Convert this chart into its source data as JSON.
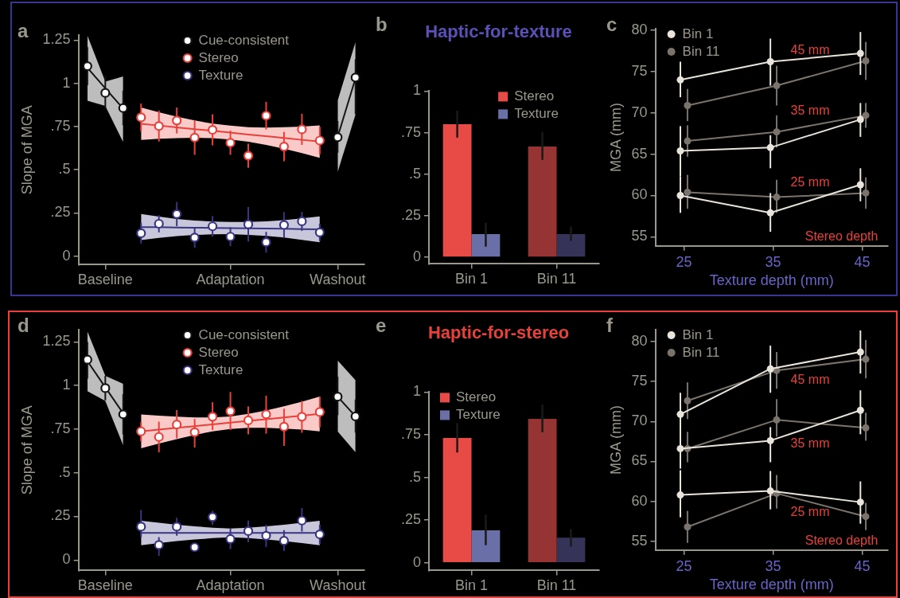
{
  "chart_data": [
    {
      "type": "scatter",
      "ylabel": "Slope of MGA",
      "annotations": [
        "a"
      ],
      "legend": "top",
      "marker": "circle",
      "categories": [
        null,
        "Baseline",
        null,
        null,
        null,
        null,
        null,
        null,
        "Adaptation",
        null,
        null,
        null,
        null,
        null,
        "Washout",
        null
      ],
      "ylim": [
        -0.05,
        1.28
      ],
      "yticks": [
        0,
        {
          "value": 0.25,
          "label": ".25"
        },
        {
          "value": 0.5,
          "label": ".5"
        },
        {
          "value": 0.75,
          "label": ".75"
        },
        1,
        1.25
      ],
      "series": [
        {
          "type": "line",
          "marker": "none",
          "color": "#141414",
          "values": [
            1.09,
            0.972,
            0.854,
            null,
            null,
            null,
            null,
            null,
            null,
            null,
            null,
            null,
            null,
            null,
            null,
            null
          ],
          "lower": [
            0.9,
            0.87,
            0.66,
            null,
            null,
            null,
            null,
            null,
            null,
            null,
            null,
            null,
            null,
            null,
            null,
            null
          ],
          "upper": [
            1.277,
            1.01,
            1.04,
            null,
            null,
            null,
            null,
            null,
            null,
            null,
            null,
            null,
            null,
            null,
            null,
            null
          ]
        },
        {
          "type": "line",
          "marker": "none",
          "color": "#141414",
          "values": [
            null,
            null,
            null,
            null,
            null,
            null,
            null,
            null,
            null,
            null,
            null,
            null,
            null,
            null,
            0.69,
            1.03
          ],
          "lower": [
            null,
            null,
            null,
            null,
            null,
            null,
            null,
            null,
            null,
            null,
            null,
            null,
            null,
            null,
            0.487,
            0.82
          ],
          "upper": [
            null,
            null,
            null,
            null,
            null,
            null,
            null,
            null,
            null,
            null,
            null,
            null,
            null,
            null,
            0.9,
            1.24
          ]
        },
        {
          "type": "line",
          "marker": "none",
          "color": "#e8403a",
          "values": [
            null,
            null,
            null,
            0.766,
            0.756,
            0.745,
            0.735,
            0.725,
            0.715,
            0.704,
            0.694,
            0.684,
            0.673,
            0.663,
            null,
            null
          ],
          "lower": [
            null,
            null,
            null,
            0.672,
            0.679,
            0.683,
            0.685,
            0.683,
            0.675,
            0.662,
            0.644,
            0.622,
            0.596,
            0.569,
            null,
            null
          ],
          "upper": [
            null,
            null,
            null,
            0.86,
            0.833,
            0.807,
            0.785,
            0.767,
            0.755,
            0.746,
            0.744,
            0.746,
            0.75,
            0.757,
            null,
            null
          ]
        },
        {
          "type": "line",
          "marker": "none",
          "color": "#3a3580",
          "values": [
            null,
            null,
            null,
            0.168,
            0.167,
            0.165,
            0.164,
            0.163,
            0.162,
            0.16,
            0.159,
            0.158,
            0.156,
            0.155,
            null,
            null
          ],
          "lower": [
            null,
            null,
            null,
            0.093,
            0.105,
            0.115,
            0.122,
            0.126,
            0.127,
            0.123,
            0.117,
            0.108,
            0.094,
            0.08,
            null,
            null
          ],
          "upper": [
            null,
            null,
            null,
            0.243,
            0.229,
            0.215,
            0.206,
            0.2,
            0.197,
            0.197,
            0.201,
            0.208,
            0.218,
            0.23,
            null,
            null
          ]
        },
        {
          "name": "Cue-consistent",
          "color": "#141414",
          "values": [
            1.1,
            0.945,
            0.857,
            null,
            null,
            null,
            null,
            null,
            null,
            null,
            null,
            null,
            null,
            null,
            0.688,
            1.034
          ],
          "errors": [
            [
              0.99,
              1.21
            ],
            [
              0.854,
              1.046
            ],
            [
              0.758,
              0.958
            ],
            null,
            null,
            null,
            null,
            null,
            null,
            null,
            null,
            null,
            null,
            null,
            [
              0.599,
              0.782
            ],
            [
              0.822,
              1.14
            ]
          ]
        },
        {
          "name": "Stereo",
          "color": "#e8403a",
          "values": [
            null,
            null,
            null,
            0.803,
            0.753,
            0.785,
            0.686,
            0.731,
            0.656,
            0.581,
            0.813,
            0.634,
            0.734,
            0.669,
            null,
            null
          ],
          "errors": [
            null,
            null,
            null,
            0.08,
            0.09,
            0.075,
            0.1,
            0.09,
            0.07,
            0.07,
            0.08,
            0.085,
            0.09,
            0.08,
            null,
            null
          ]
        },
        {
          "name": "Texture",
          "color": "#3a3580",
          "values": [
            null,
            null,
            null,
            0.132,
            0.187,
            0.243,
            0.107,
            0.172,
            0.112,
            0.184,
            0.08,
            0.18,
            0.201,
            0.137,
            null,
            null
          ],
          "errors": [
            null,
            null,
            null,
            0.06,
            0.05,
            0.07,
            0.06,
            0.06,
            0.055,
            0.1,
            0.06,
            0.075,
            0.055,
            0.05,
            null,
            null
          ]
        }
      ]
    },
    {
      "type": "bar",
      "title": "Haptic-for-texture",
      "annotations": [
        "b"
      ],
      "legend": "top",
      "categories": [
        "Bin 1",
        "Bin 11"
      ],
      "ylim": [
        -0.04,
        1
      ],
      "yticks": [
        0,
        {
          "value": 0.25,
          "label": ".25"
        },
        {
          "value": 0.5,
          "label": ".5"
        },
        {
          "value": 0.75,
          "label": ".75"
        },
        1
      ],
      "series": [
        {
          "name": "Stereo",
          "color": "#e84a45",
          "colors": [
            "#e84a45",
            "#953432"
          ],
          "values": [
            0.801,
            0.667
          ],
          "errors": [
            [
              0.72,
              0.882
            ],
            [
              0.586,
              0.753
            ]
          ]
        },
        {
          "name": "Texture",
          "color": "#6a6fa8",
          "colors": [
            "#6a6fa8",
            "#363358"
          ],
          "values": [
            0.139,
            0.139
          ],
          "errors": [
            [
              0.064,
              0.207
            ],
            [
              0.099,
              0.185
            ]
          ]
        }
      ]
    },
    {
      "type": "line",
      "xlabel": "Texture depth (mm)",
      "ylabel": "MGA (mm)",
      "legend": "top left",
      "marker": "circle",
      "annotations": [
        "c",
        "45 mm",
        "35 mm",
        "25 mm",
        "Stereo depth"
      ],
      "xlim": [
        21.8,
        47.9
      ],
      "xticks": [
        25,
        35,
        45
      ],
      "ylim": [
        53.9,
        80.2
      ],
      "yticks": [
        55,
        60,
        65,
        70,
        75,
        80
      ],
      "series": [
        {
          "name": "Bin 1",
          "color": "#e8e4dc",
          "x": [
            24.6,
            34.7,
            44.8
          ],
          "values": [
            74.0,
            76.2,
            77.2
          ],
          "errors": [
            [
              71.9,
              76.2
            ],
            [
              73.3,
              79.0
            ],
            [
              74.6,
              79.8
            ]
          ]
        },
        {
          "name": "Bin 11",
          "color": "#7a736c",
          "x": [
            25.4,
            35.4,
            45.4
          ],
          "values": [
            70.9,
            73.3,
            76.3
          ],
          "errors": [
            [
              69.0,
              72.9
            ],
            [
              70.9,
              75.7
            ],
            [
              74.0,
              78.6
            ]
          ]
        },
        {
          "color": "#e8e4dc",
          "x": [
            24.6,
            34.7,
            44.8
          ],
          "values": [
            65.4,
            65.8,
            69.2
          ],
          "errors": [
            [
              62.3,
              68.4
            ],
            [
              63.3,
              67.3
            ],
            [
              67.1,
              71.2
            ]
          ]
        },
        {
          "color": "#7a736c",
          "x": [
            25.4,
            35.4,
            45.4
          ],
          "values": [
            66.6,
            67.7,
            69.7
          ],
          "errors": [
            [
              64.7,
              68.5
            ],
            [
              65.8,
              69.7
            ],
            [
              68.2,
              71.2
            ]
          ]
        },
        {
          "color": "#e8e4dc",
          "x": [
            24.6,
            34.7,
            44.8
          ],
          "values": [
            60.0,
            57.9,
            61.3
          ],
          "errors": [
            [
              57.9,
              62.3
            ],
            [
              55.6,
              60.3
            ],
            [
              59.3,
              63.3
            ]
          ]
        },
        {
          "color": "#7a736c",
          "x": [
            25.4,
            35.4,
            45.4
          ],
          "values": [
            60.4,
            59.8,
            60.3
          ],
          "errors": [
            [
              58.4,
              62.5
            ],
            [
              57.9,
              61.9
            ],
            [
              58.4,
              62.2
            ]
          ]
        }
      ]
    },
    {
      "type": "scatter",
      "ylabel": "Slope of MGA",
      "annotations": [
        "d"
      ],
      "legend": "top",
      "marker": "circle",
      "categories": [
        null,
        "Baseline",
        null,
        null,
        null,
        null,
        null,
        null,
        "Adaptation",
        null,
        null,
        null,
        null,
        null,
        "Washout",
        null
      ],
      "ylim": [
        -0.06,
        1.32
      ],
      "yticks": [
        0,
        {
          "value": 0.25,
          "label": ".25"
        },
        {
          "value": 0.5,
          "label": ".5"
        },
        {
          "value": 0.75,
          "label": ".75"
        },
        1,
        1.25
      ],
      "series": [
        {
          "type": "line",
          "marker": "none",
          "color": "#141414",
          "values": [
            1.14,
            0.99,
            0.84,
            null,
            null,
            null,
            null,
            null,
            null,
            null,
            null,
            null,
            null,
            null,
            null,
            null
          ],
          "lower": [
            0.968,
            0.912,
            0.657,
            null,
            null,
            null,
            null,
            null,
            null,
            null,
            null,
            null,
            null,
            null,
            null,
            null
          ],
          "upper": [
            1.31,
            1.055,
            1.01,
            null,
            null,
            null,
            null,
            null,
            null,
            null,
            null,
            null,
            null,
            null,
            null,
            null
          ]
        },
        {
          "type": "line",
          "marker": "none",
          "color": "#141414",
          "values": [
            null,
            null,
            null,
            null,
            null,
            null,
            null,
            null,
            null,
            null,
            null,
            null,
            null,
            null,
            0.936,
            0.823
          ],
          "lower": [
            null,
            null,
            null,
            null,
            null,
            null,
            null,
            null,
            null,
            null,
            null,
            null,
            null,
            null,
            0.737,
            0.617
          ],
          "upper": [
            null,
            null,
            null,
            null,
            null,
            null,
            null,
            null,
            null,
            null,
            null,
            null,
            null,
            null,
            1.143,
            1.03
          ]
        },
        {
          "type": "line",
          "marker": "none",
          "color": "#e8403a",
          "values": [
            null,
            null,
            null,
            0.737,
            0.747,
            0.757,
            0.767,
            0.777,
            0.787,
            0.797,
            0.807,
            0.817,
            0.827,
            0.837,
            null,
            null
          ],
          "lower": [
            null,
            null,
            null,
            0.64,
            0.667,
            0.693,
            0.717,
            0.737,
            0.751,
            0.757,
            0.757,
            0.753,
            0.747,
            0.737,
            null,
            null
          ],
          "upper": [
            null,
            null,
            null,
            0.834,
            0.827,
            0.821,
            0.817,
            0.817,
            0.823,
            0.837,
            0.857,
            0.881,
            0.907,
            0.937,
            null,
            null
          ]
        },
        {
          "type": "line",
          "marker": "none",
          "color": "#3a3580",
          "values": [
            null,
            null,
            null,
            0.155,
            0.155,
            0.155,
            0.155,
            0.155,
            0.155,
            0.155,
            0.155,
            0.155,
            0.155,
            0.155,
            null,
            null
          ],
          "lower": [
            null,
            null,
            null,
            0.085,
            0.097,
            0.108,
            0.117,
            0.125,
            0.13,
            0.125,
            0.117,
            0.108,
            0.097,
            0.085,
            null,
            null
          ],
          "upper": [
            null,
            null,
            null,
            0.225,
            0.213,
            0.202,
            0.193,
            0.185,
            0.18,
            0.185,
            0.193,
            0.202,
            0.213,
            0.225,
            null,
            null
          ]
        },
        {
          "name": "Cue-consistent",
          "color": "#141414",
          "values": [
            1.148,
            0.985,
            0.835,
            null,
            null,
            null,
            null,
            null,
            null,
            null,
            null,
            null,
            null,
            null,
            0.936,
            0.823
          ],
          "errors": [
            [
              1.04,
              1.25
            ],
            [
              0.915,
              1.055
            ],
            [
              0.72,
              0.95
            ],
            null,
            null,
            null,
            null,
            null,
            null,
            null,
            null,
            null,
            null,
            null,
            [
              0.83,
              1.05
            ],
            [
              0.73,
              0.92
            ]
          ]
        },
        {
          "name": "Stereo",
          "color": "#e8403a",
          "values": [
            null,
            null,
            null,
            0.737,
            0.705,
            0.776,
            0.732,
            0.821,
            0.853,
            0.8,
            0.835,
            0.764,
            0.821,
            0.848,
            null,
            null
          ],
          "errors": [
            null,
            null,
            null,
            [
              0.68,
              0.79
            ],
            [
              0.617,
              0.793
            ],
            [
              0.697,
              0.859
            ],
            [
              0.644,
              0.808
            ],
            [
              0.745,
              0.904
            ],
            [
              0.745,
              0.963
            ],
            [
              0.72,
              0.88
            ],
            [
              0.724,
              0.941
            ],
            [
              0.654,
              0.867
            ],
            [
              0.729,
              0.912
            ],
            [
              0.76,
              0.936
            ],
            null,
            null
          ]
        },
        {
          "name": "Texture",
          "color": "#3a3580",
          "values": [
            null,
            null,
            null,
            0.191,
            0.086,
            0.191,
            0.073,
            0.246,
            0.12,
            0.166,
            0.139,
            0.11,
            0.226,
            0.147,
            null,
            null
          ],
          "errors": [
            null,
            null,
            null,
            [
              0.131,
              0.287
            ],
            [
              0.024,
              0.131
            ],
            [
              0.139,
              0.242
            ],
            null,
            [
              0.202,
              0.282
            ],
            [
              0.062,
              0.179
            ],
            [
              0.102,
              0.226
            ],
            [
              0.075,
              0.202
            ],
            [
              0.051,
              0.171
            ],
            [
              0.163,
              0.298
            ],
            [
              0.091,
              0.202
            ],
            null,
            null
          ]
        }
      ]
    },
    {
      "type": "bar",
      "title": "Haptic-for-stereo",
      "annotations": [
        "e"
      ],
      "legend": "top left",
      "categories": [
        "Bin 1",
        "Bin 11"
      ],
      "ylim": [
        -0.045,
        1
      ],
      "yticks": [
        0,
        {
          "value": 0.25,
          "label": ".25"
        },
        {
          "value": 0.5,
          "label": ".5"
        },
        {
          "value": 0.75,
          "label": ".75"
        },
        1
      ],
      "series": [
        {
          "name": "Stereo",
          "color": "#e84a45",
          "colors": [
            "#e84a45",
            "#953432"
          ],
          "values": [
            0.731,
            0.843
          ],
          "errors": [
            [
              0.646,
              0.818
            ],
            [
              0.764,
              0.926
            ]
          ]
        },
        {
          "name": "Texture",
          "color": "#6a6fa8",
          "colors": [
            "#6a6fa8",
            "#363358"
          ],
          "values": [
            0.19,
            0.147
          ],
          "errors": [
            [
              0.103,
              0.282
            ],
            [
              0.095,
              0.198
            ]
          ]
        }
      ]
    },
    {
      "type": "line",
      "xlabel": "Texture depth (mm)",
      "ylabel": "MGA (mm)",
      "legend": "top left",
      "marker": "circle",
      "annotations": [
        "f",
        "45 mm",
        "35 mm",
        "25 mm",
        "Stereo depth"
      ],
      "xlim": [
        21.8,
        47.9
      ],
      "xticks": [
        25,
        35,
        45
      ],
      "ylim": [
        53.9,
        81.5
      ],
      "yticks": [
        55,
        60,
        65,
        70,
        75,
        80
      ],
      "series": [
        {
          "name": "Bin 1",
          "color": "#e8e4dc",
          "x": [
            24.6,
            34.7,
            44.8
          ],
          "values": [
            70.9,
            76.6,
            78.7
          ],
          "errors": [
            [
              68.2,
              73.6
            ],
            [
              73.6,
              79.5
            ],
            [
              76.0,
              81.4
            ]
          ]
        },
        {
          "name": "Bin 11",
          "color": "#7a736c",
          "x": [
            25.4,
            35.4,
            45.4
          ],
          "values": [
            72.6,
            76.4,
            77.8
          ],
          "errors": [
            [
              70.3,
              74.9
            ],
            [
              74.1,
              78.7
            ],
            [
              75.4,
              80.2
            ]
          ]
        },
        {
          "color": "#e8e4dc",
          "x": [
            24.6,
            34.7,
            44.8
          ],
          "values": [
            66.6,
            67.6,
            71.4
          ],
          "errors": [
            [
              64.1,
              69.3
            ],
            [
              64.9,
              69.3
            ],
            [
              68.4,
              73.9
            ]
          ]
        },
        {
          "color": "#7a736c",
          "x": [
            25.4,
            35.4,
            45.4
          ],
          "values": [
            66.6,
            70.2,
            69.2
          ],
          "errors": [
            [
              64.9,
              68.7
            ],
            [
              68.1,
              72.8
            ],
            [
              67.6,
              71.1
            ]
          ]
        },
        {
          "color": "#e8e4dc",
          "x": [
            24.6,
            34.7,
            44.8
          ],
          "values": [
            60.8,
            61.3,
            59.9
          ],
          "errors": [
            [
              58.0,
              63.9
            ],
            [
              59.0,
              63.8
            ],
            [
              57.2,
              62.5
            ]
          ]
        },
        {
          "color": "#7a736c",
          "x": [
            25.4,
            35.4,
            45.4
          ],
          "values": [
            56.8,
            61.0,
            58.1
          ],
          "errors": [
            [
              54.8,
              58.8
            ],
            [
              59.1,
              63.3
            ],
            [
              56.4,
              59.8
            ]
          ]
        }
      ]
    }
  ]
}
